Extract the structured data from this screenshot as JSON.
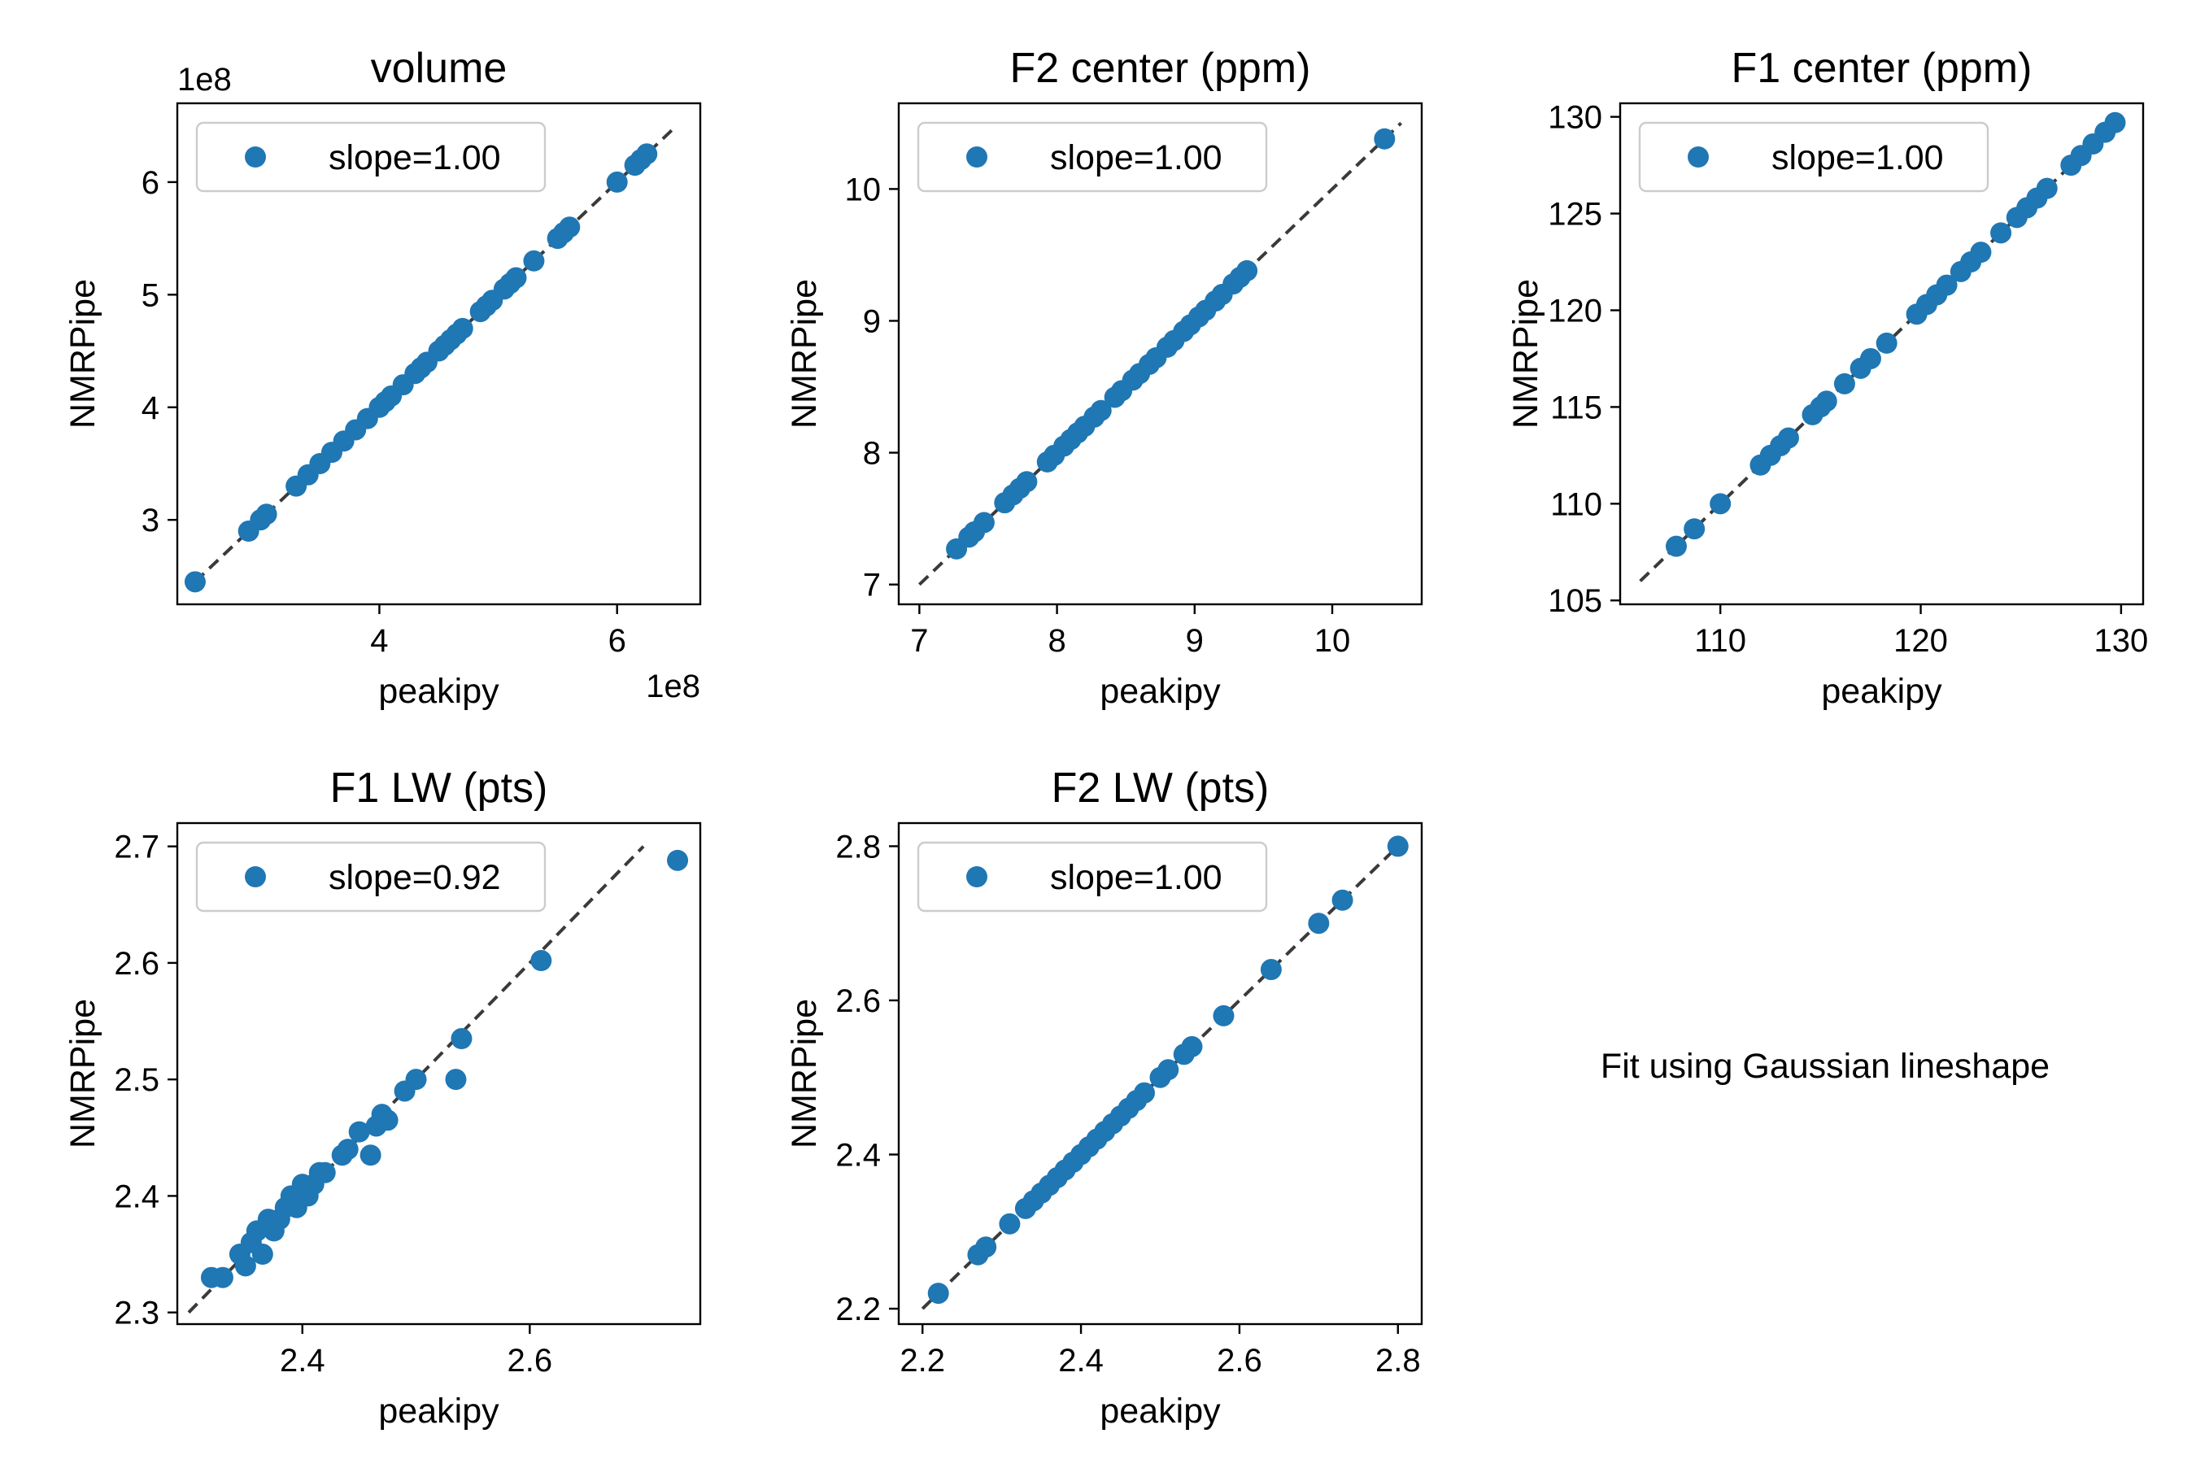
{
  "figure_note": "Fit using Gaussian lineshape",
  "chart_data": [
    {
      "type": "scatter",
      "title": "volume",
      "xlabel": "peakipy",
      "ylabel": "NMRPipe",
      "offset_x": "1e8",
      "offset_y": "1e8",
      "xlim": [
        2.3,
        6.7
      ],
      "ylim": [
        2.25,
        6.7
      ],
      "xticks": [
        4,
        6
      ],
      "yticks": [
        3,
        4,
        5,
        6
      ],
      "legend": {
        "label": "slope=1.00",
        "position": "upper left"
      },
      "identity_line": {
        "from": 2.45,
        "to": 6.5
      },
      "series": [
        {
          "x": [
            2.45,
            2.9,
            3.0,
            3.05,
            3.3,
            3.4,
            3.5,
            3.6,
            3.7,
            3.8,
            3.9,
            4.0,
            4.05,
            4.1,
            4.2,
            4.3,
            4.35,
            4.4,
            4.5,
            4.55,
            4.6,
            4.65,
            4.7,
            4.85,
            4.9,
            4.95,
            5.05,
            5.1,
            5.15,
            5.3,
            5.5,
            5.55,
            5.6,
            6.0,
            6.15,
            6.2,
            6.25
          ],
          "y": [
            2.45,
            2.9,
            3.0,
            3.05,
            3.3,
            3.4,
            3.5,
            3.6,
            3.7,
            3.8,
            3.9,
            4.0,
            4.05,
            4.1,
            4.2,
            4.3,
            4.35,
            4.4,
            4.5,
            4.55,
            4.6,
            4.65,
            4.7,
            4.85,
            4.9,
            4.95,
            5.05,
            5.1,
            5.15,
            5.3,
            5.5,
            5.55,
            5.6,
            6.0,
            6.15,
            6.2,
            6.25
          ]
        }
      ]
    },
    {
      "type": "scatter",
      "title": "F2 center (ppm)",
      "xlabel": "peakipy",
      "ylabel": "NMRPipe",
      "xlim": [
        6.85,
        10.65
      ],
      "ylim": [
        6.85,
        10.65
      ],
      "xticks": [
        7,
        8,
        9,
        10
      ],
      "yticks": [
        7,
        8,
        9,
        10
      ],
      "legend": {
        "label": "slope=1.00",
        "position": "upper left"
      },
      "identity_line": {
        "from": 7.0,
        "to": 10.5
      },
      "series": [
        {
          "x": [
            7.27,
            7.36,
            7.4,
            7.47,
            7.62,
            7.68,
            7.73,
            7.78,
            7.93,
            7.98,
            8.05,
            8.1,
            8.15,
            8.2,
            8.27,
            8.32,
            8.42,
            8.47,
            8.55,
            8.6,
            8.67,
            8.72,
            8.8,
            8.85,
            8.92,
            8.97,
            9.03,
            9.08,
            9.15,
            9.2,
            9.28,
            9.33,
            9.38,
            10.38
          ],
          "y": [
            7.27,
            7.36,
            7.4,
            7.47,
            7.62,
            7.68,
            7.73,
            7.78,
            7.93,
            7.98,
            8.05,
            8.1,
            8.15,
            8.2,
            8.27,
            8.32,
            8.42,
            8.47,
            8.55,
            8.6,
            8.67,
            8.72,
            8.8,
            8.85,
            8.92,
            8.97,
            9.03,
            9.08,
            9.15,
            9.2,
            9.28,
            9.33,
            9.38,
            10.38
          ]
        }
      ]
    },
    {
      "type": "scatter",
      "title": "F1 center (ppm)",
      "xlabel": "peakipy",
      "ylabel": "NMRPipe",
      "xlim": [
        105.0,
        131.1
      ],
      "ylim": [
        104.8,
        130.7
      ],
      "xticks": [
        110,
        120,
        130
      ],
      "yticks": [
        105,
        110,
        115,
        120,
        125,
        130
      ],
      "legend": {
        "label": "slope=1.00",
        "position": "upper left"
      },
      "identity_line": {
        "from": 106.0,
        "to": 130.0
      },
      "series": [
        {
          "x": [
            107.8,
            108.7,
            110.0,
            112.0,
            112.5,
            113.0,
            113.4,
            114.6,
            115.0,
            115.3,
            116.2,
            117.0,
            117.5,
            118.3,
            119.8,
            120.3,
            120.8,
            121.3,
            122.0,
            122.5,
            123.0,
            124.0,
            124.8,
            125.3,
            125.8,
            126.3,
            127.5,
            128.0,
            128.6,
            129.2,
            129.7
          ],
          "y": [
            107.8,
            108.7,
            110.0,
            112.0,
            112.5,
            113.0,
            113.4,
            114.6,
            115.0,
            115.3,
            116.2,
            117.0,
            117.5,
            118.3,
            119.8,
            120.3,
            120.8,
            121.3,
            122.0,
            122.5,
            123.0,
            124.0,
            124.8,
            125.3,
            125.8,
            126.3,
            127.5,
            128.0,
            128.6,
            129.2,
            129.7
          ]
        }
      ]
    },
    {
      "type": "scatter",
      "title": "F1 LW (pts)",
      "xlabel": "peakipy",
      "ylabel": "NMRPipe",
      "xlim": [
        2.29,
        2.75
      ],
      "ylim": [
        2.29,
        2.72
      ],
      "xticks": [
        2.4,
        2.6
      ],
      "yticks": [
        2.3,
        2.4,
        2.5,
        2.6,
        2.7
      ],
      "legend": {
        "label": "slope=0.92",
        "position": "upper left"
      },
      "identity_line": {
        "from": 2.3,
        "to": 2.7
      },
      "series": [
        {
          "x": [
            2.32,
            2.33,
            2.345,
            2.35,
            2.355,
            2.36,
            2.365,
            2.37,
            2.375,
            2.38,
            2.385,
            2.39,
            2.395,
            2.4,
            2.405,
            2.41,
            2.415,
            2.42,
            2.435,
            2.44,
            2.45,
            2.46,
            2.465,
            2.47,
            2.475,
            2.49,
            2.5,
            2.535,
            2.54,
            2.61,
            2.73
          ],
          "y": [
            2.33,
            2.33,
            2.35,
            2.34,
            2.36,
            2.37,
            2.35,
            2.38,
            2.37,
            2.38,
            2.39,
            2.4,
            2.39,
            2.41,
            2.4,
            2.41,
            2.42,
            2.42,
            2.435,
            2.44,
            2.455,
            2.435,
            2.46,
            2.47,
            2.465,
            2.49,
            2.5,
            2.5,
            2.535,
            2.602,
            2.688
          ]
        }
      ]
    },
    {
      "type": "scatter",
      "title": "F2 LW (pts)",
      "xlabel": "peakipy",
      "ylabel": "NMRPipe",
      "xlim": [
        2.17,
        2.83
      ],
      "ylim": [
        2.18,
        2.83
      ],
      "xticks": [
        2.2,
        2.4,
        2.6,
        2.8
      ],
      "yticks": [
        2.2,
        2.4,
        2.6,
        2.8
      ],
      "legend": {
        "label": "slope=1.00",
        "position": "upper left"
      },
      "identity_line": {
        "from": 2.2,
        "to": 2.8
      },
      "series": [
        {
          "x": [
            2.22,
            2.27,
            2.28,
            2.31,
            2.33,
            2.34,
            2.35,
            2.36,
            2.37,
            2.38,
            2.39,
            2.4,
            2.41,
            2.42,
            2.43,
            2.44,
            2.45,
            2.46,
            2.47,
            2.48,
            2.5,
            2.51,
            2.53,
            2.54,
            2.58,
            2.64,
            2.7,
            2.73,
            2.8
          ],
          "y": [
            2.22,
            2.27,
            2.28,
            2.31,
            2.33,
            2.34,
            2.35,
            2.36,
            2.37,
            2.38,
            2.39,
            2.4,
            2.41,
            2.42,
            2.43,
            2.44,
            2.45,
            2.46,
            2.47,
            2.48,
            2.5,
            2.51,
            2.53,
            2.54,
            2.58,
            2.64,
            2.7,
            2.73,
            2.8
          ]
        }
      ]
    }
  ]
}
